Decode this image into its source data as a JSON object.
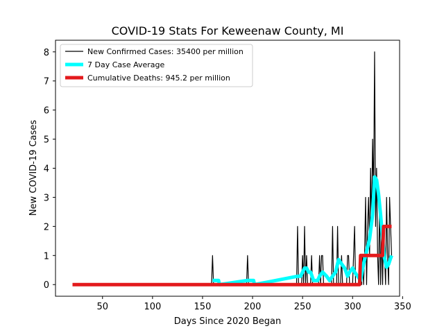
{
  "chart_data": {
    "type": "line",
    "title": "COVID-19 Stats For Keweenaw County, MI",
    "xlabel": "Days Since 2020 Began",
    "ylabel": "New COVID-19 Cases",
    "xlim": [
      3,
      347
    ],
    "ylim": [
      -0.4,
      8.4
    ],
    "xticks": [
      50,
      100,
      150,
      200,
      250,
      300,
      350
    ],
    "yticks": [
      0,
      1,
      2,
      3,
      4,
      5,
      6,
      7,
      8
    ],
    "legend_position": "upper-left",
    "grid": false,
    "series": [
      {
        "name": "New Confirmed Cases: 35400 per million",
        "color": "#000000",
        "points": [
          [
            20,
            0
          ],
          [
            159,
            0
          ],
          [
            160,
            1
          ],
          [
            161,
            0
          ],
          [
            194,
            0
          ],
          [
            195,
            1
          ],
          [
            196,
            0
          ],
          [
            244,
            0
          ],
          [
            245,
            2
          ],
          [
            246,
            0
          ],
          [
            249,
            0
          ],
          [
            250,
            1
          ],
          [
            251,
            0
          ],
          [
            252,
            2
          ],
          [
            253,
            0
          ],
          [
            254,
            1
          ],
          [
            255,
            0
          ],
          [
            258,
            0
          ],
          [
            259,
            1
          ],
          [
            260,
            0
          ],
          [
            266,
            0
          ],
          [
            267,
            1
          ],
          [
            268,
            0
          ],
          [
            269,
            1
          ],
          [
            270,
            1
          ],
          [
            271,
            0
          ],
          [
            279,
            0
          ],
          [
            280,
            2
          ],
          [
            281,
            0
          ],
          [
            284,
            0
          ],
          [
            285,
            2
          ],
          [
            286,
            0
          ],
          [
            288,
            0
          ],
          [
            289,
            1
          ],
          [
            290,
            0
          ],
          [
            294,
            0
          ],
          [
            295,
            1
          ],
          [
            296,
            1
          ],
          [
            297,
            0
          ],
          [
            300,
            0
          ],
          [
            301,
            1
          ],
          [
            302,
            2
          ],
          [
            303,
            0
          ],
          [
            309,
            0
          ],
          [
            310,
            1
          ],
          [
            311,
            0
          ],
          [
            312,
            1
          ],
          [
            313,
            3
          ],
          [
            314,
            0
          ],
          [
            315,
            2
          ],
          [
            316,
            3
          ],
          [
            317,
            1
          ],
          [
            318,
            4
          ],
          [
            319,
            2
          ],
          [
            320,
            5
          ],
          [
            321,
            3
          ],
          [
            322,
            8
          ],
          [
            323,
            2
          ],
          [
            324,
            4
          ],
          [
            325,
            1
          ],
          [
            326,
            0
          ],
          [
            327,
            3
          ],
          [
            328,
            0
          ],
          [
            329,
            2
          ],
          [
            330,
            0
          ],
          [
            331,
            2
          ],
          [
            332,
            1
          ],
          [
            333,
            0
          ],
          [
            334,
            3
          ],
          [
            335,
            1
          ],
          [
            336,
            0
          ],
          [
            337,
            3
          ],
          [
            338,
            2
          ],
          [
            339,
            1
          ]
        ]
      },
      {
        "name": "7 Day Case Average",
        "color": "#00ffff",
        "points": [
          [
            160,
            0.143
          ],
          [
            166,
            0.143
          ],
          [
            167,
            0
          ],
          [
            195,
            0.143
          ],
          [
            201,
            0.143
          ],
          [
            202,
            0
          ],
          [
            245,
            0.286
          ],
          [
            248,
            0.286
          ],
          [
            250,
            0.43
          ],
          [
            252,
            0.57
          ],
          [
            254,
            0.57
          ],
          [
            256,
            0.43
          ],
          [
            258,
            0.43
          ],
          [
            261,
            0.14
          ],
          [
            265,
            0.14
          ],
          [
            267,
            0.29
          ],
          [
            270,
            0.43
          ],
          [
            274,
            0.29
          ],
          [
            277,
            0.14
          ],
          [
            280,
            0.29
          ],
          [
            283,
            0.43
          ],
          [
            286,
            0.86
          ],
          [
            289,
            0.71
          ],
          [
            292,
            0.57
          ],
          [
            295,
            0.29
          ],
          [
            297,
            0.43
          ],
          [
            300,
            0.57
          ],
          [
            302,
            0.43
          ],
          [
            305,
            0.29
          ],
          [
            308,
            0.14
          ],
          [
            311,
            0.71
          ],
          [
            314,
            1.14
          ],
          [
            317,
            1.57
          ],
          [
            320,
            2.4
          ],
          [
            322,
            3.7
          ],
          [
            324,
            3.6
          ],
          [
            326,
            3.1
          ],
          [
            328,
            2.4
          ],
          [
            330,
            1.6
          ],
          [
            332,
            0.9
          ],
          [
            334,
            0.6
          ],
          [
            336,
            0.7
          ],
          [
            338,
            0.9
          ],
          [
            339,
            1.0
          ]
        ]
      },
      {
        "name": "Cumulative Deaths: 945.2 per million",
        "color": "#e31a1c",
        "points": [
          [
            20,
            0
          ],
          [
            307,
            0
          ],
          [
            308,
            1
          ],
          [
            330,
            1
          ],
          [
            331,
            2
          ],
          [
            339,
            2
          ]
        ]
      }
    ]
  }
}
